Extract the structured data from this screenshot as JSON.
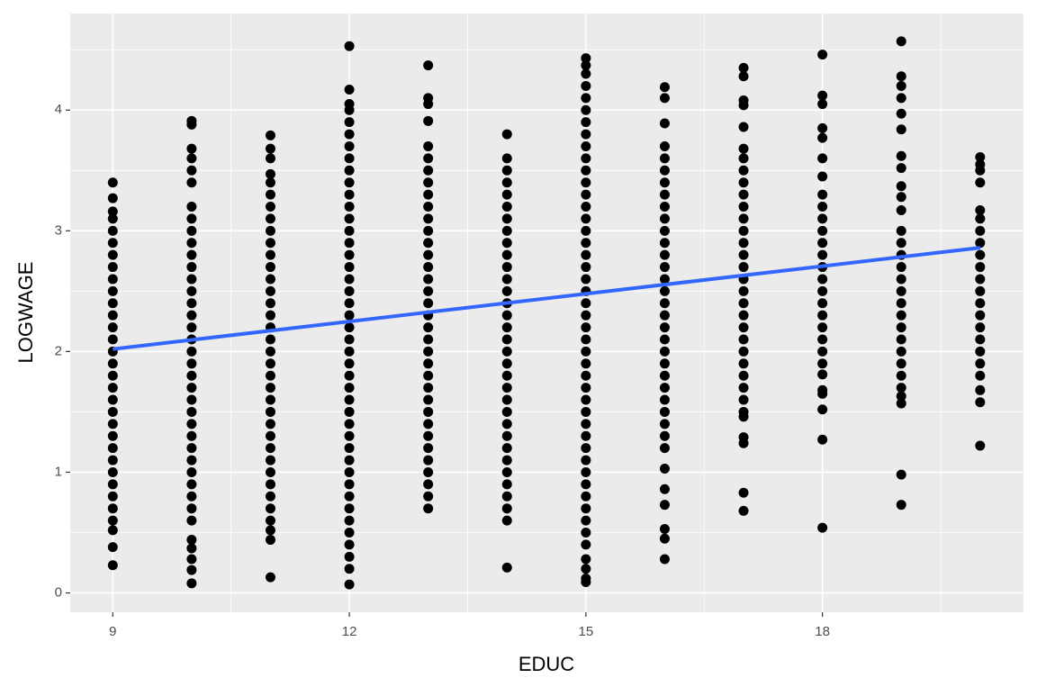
{
  "chart_data": {
    "type": "scatter",
    "xlabel": "EDUC",
    "ylabel": "LOGWAGE",
    "xlim": [
      8.46,
      20.55
    ],
    "ylim": [
      -0.16,
      4.8
    ],
    "xticks": [
      9,
      12,
      15,
      18
    ],
    "yticks": [
      0,
      1,
      2,
      3,
      4
    ],
    "grid": true,
    "point_color": "#000000",
    "columns": [
      {
        "x": 9,
        "values": [
          0.23,
          0.38,
          0.52,
          0.6,
          0.7,
          0.8,
          0.9,
          1,
          1.1,
          1.2,
          1.3,
          1.4,
          1.5,
          1.6,
          1.7,
          1.8,
          1.9,
          2,
          2.1,
          2.2,
          2.3,
          2.4,
          2.5,
          2.6,
          2.7,
          2.8,
          2.9,
          3,
          3.1,
          3.16,
          3.27,
          3.4
        ]
      },
      {
        "x": 10,
        "values": [
          0.08,
          0.19,
          0.28,
          0.37,
          0.44,
          0.6,
          0.7,
          0.8,
          0.9,
          1,
          1.1,
          1.2,
          1.3,
          1.4,
          1.5,
          1.6,
          1.7,
          1.8,
          1.9,
          2,
          2.1,
          2.2,
          2.3,
          2.4,
          2.5,
          2.6,
          2.7,
          2.8,
          2.9,
          3,
          3.1,
          3.2,
          3.4,
          3.5,
          3.6,
          3.68,
          3.88,
          3.91
        ]
      },
      {
        "x": 11,
        "values": [
          0.13,
          0.44,
          0.52,
          0.6,
          0.7,
          0.8,
          0.9,
          1,
          1.1,
          1.2,
          1.3,
          1.4,
          1.5,
          1.6,
          1.7,
          1.8,
          1.9,
          2,
          2.1,
          2.2,
          2.3,
          2.4,
          2.5,
          2.6,
          2.7,
          2.8,
          2.9,
          3,
          3.1,
          3.2,
          3.3,
          3.4,
          3.47,
          3.6,
          3.68,
          3.79
        ]
      },
      {
        "x": 12,
        "values": [
          0.07,
          0.2,
          0.3,
          0.4,
          0.5,
          0.6,
          0.7,
          0.8,
          0.9,
          1,
          1.1,
          1.2,
          1.3,
          1.4,
          1.5,
          1.6,
          1.7,
          1.8,
          1.9,
          2,
          2.1,
          2.2,
          2.3,
          2.4,
          2.5,
          2.6,
          2.7,
          2.8,
          2.9,
          3,
          3.1,
          3.2,
          3.3,
          3.4,
          3.5,
          3.6,
          3.7,
          3.8,
          3.9,
          4,
          4.05,
          4.17,
          4.53
        ]
      },
      {
        "x": 13,
        "values": [
          0.7,
          0.8,
          0.9,
          1,
          1.1,
          1.2,
          1.3,
          1.4,
          1.5,
          1.6,
          1.7,
          1.8,
          1.9,
          2,
          2.1,
          2.2,
          2.3,
          2.4,
          2.5,
          2.6,
          2.7,
          2.8,
          2.9,
          3,
          3.1,
          3.2,
          3.3,
          3.4,
          3.5,
          3.6,
          3.7,
          3.91,
          4.05,
          4.1,
          4.37
        ]
      },
      {
        "x": 14,
        "values": [
          0.21,
          0.6,
          0.7,
          0.8,
          0.9,
          1,
          1.1,
          1.2,
          1.3,
          1.4,
          1.5,
          1.6,
          1.7,
          1.8,
          1.9,
          2,
          2.1,
          2.2,
          2.3,
          2.4,
          2.5,
          2.6,
          2.7,
          2.8,
          2.9,
          3,
          3.1,
          3.2,
          3.3,
          3.4,
          3.5,
          3.6,
          3.8
        ]
      },
      {
        "x": 15,
        "values": [
          0.09,
          0.12,
          0.2,
          0.28,
          0.4,
          0.5,
          0.6,
          0.7,
          0.8,
          0.9,
          1,
          1.1,
          1.2,
          1.3,
          1.4,
          1.5,
          1.6,
          1.7,
          1.8,
          1.9,
          2,
          2.1,
          2.2,
          2.3,
          2.4,
          2.5,
          2.6,
          2.7,
          2.8,
          2.9,
          3,
          3.1,
          3.2,
          3.3,
          3.4,
          3.5,
          3.6,
          3.7,
          3.8,
          3.9,
          4,
          4.1,
          4.2,
          4.3,
          4.37,
          4.43
        ]
      },
      {
        "x": 16,
        "values": [
          0.28,
          0.45,
          0.53,
          0.73,
          0.86,
          1.03,
          1.2,
          1.3,
          1.4,
          1.5,
          1.6,
          1.7,
          1.8,
          1.9,
          2,
          2.1,
          2.2,
          2.3,
          2.4,
          2.5,
          2.6,
          2.7,
          2.8,
          2.9,
          3,
          3.1,
          3.2,
          3.3,
          3.4,
          3.5,
          3.6,
          3.7,
          3.89,
          4.1,
          4.19
        ]
      },
      {
        "x": 17,
        "values": [
          0.68,
          0.83,
          1.24,
          1.29,
          1.46,
          1.5,
          1.6,
          1.7,
          1.8,
          1.9,
          2,
          2.1,
          2.2,
          2.3,
          2.4,
          2.5,
          2.6,
          2.7,
          2.8,
          2.9,
          3,
          3.1,
          3.2,
          3.3,
          3.4,
          3.5,
          3.6,
          3.68,
          3.86,
          4.04,
          4.08,
          4.28,
          4.35
        ]
      },
      {
        "x": 18,
        "values": [
          0.54,
          1.27,
          1.52,
          1.65,
          1.68,
          1.81,
          1.9,
          2,
          2.1,
          2.2,
          2.3,
          2.4,
          2.5,
          2.6,
          2.7,
          2.8,
          2.9,
          3,
          3.1,
          3.2,
          3.3,
          3.45,
          3.6,
          3.77,
          3.85,
          4.05,
          4.12,
          4.46
        ]
      },
      {
        "x": 19,
        "values": [
          0.73,
          0.98,
          1.57,
          1.63,
          1.7,
          1.8,
          1.9,
          2,
          2.1,
          2.2,
          2.3,
          2.4,
          2.5,
          2.6,
          2.7,
          2.8,
          2.9,
          3,
          3.17,
          3.28,
          3.37,
          3.52,
          3.62,
          3.84,
          3.97,
          4.1,
          4.2,
          4.28,
          4.57
        ]
      },
      {
        "x": 20,
        "values": [
          1.22,
          1.58,
          1.68,
          1.8,
          1.9,
          2,
          2.1,
          2.2,
          2.3,
          2.4,
          2.5,
          2.6,
          2.7,
          2.8,
          2.9,
          3,
          3.1,
          3.17,
          3.4,
          3.5,
          3.55,
          3.61
        ]
      }
    ],
    "fit": {
      "color": "#3366ff",
      "x": [
        9,
        20
      ],
      "values": [
        2.02,
        2.86
      ]
    }
  }
}
